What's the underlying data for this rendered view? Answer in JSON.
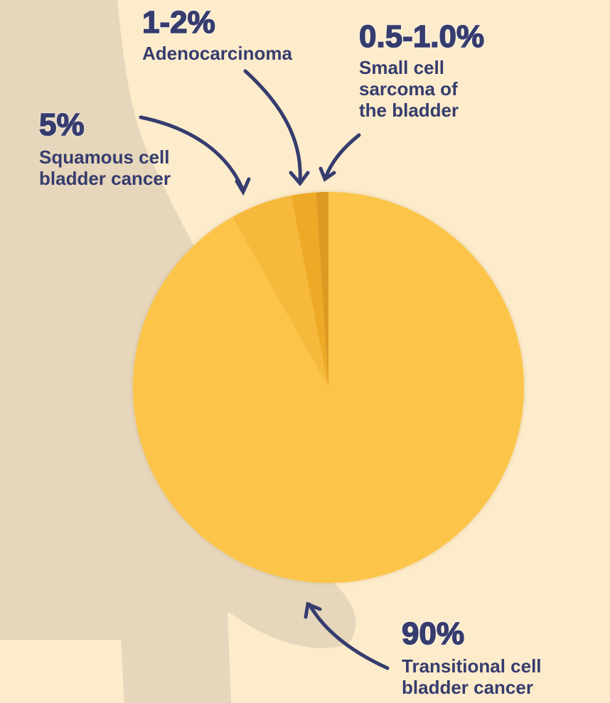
{
  "chart_data": {
    "type": "pie",
    "categories": [
      "Transitional cell bladder cancer",
      "Squamous cell bladder cancer",
      "Adenocarcinoma",
      "Small cell sarcoma of the bladder"
    ],
    "values": [
      90,
      5,
      2,
      1
    ],
    "value_labels": [
      "90%",
      "5%",
      "1-2%",
      "0.5-1.0%"
    ],
    "colors": [
      "#fcc54a",
      "#f6b93b",
      "#eeaa27",
      "#dd9a22"
    ]
  }
}
